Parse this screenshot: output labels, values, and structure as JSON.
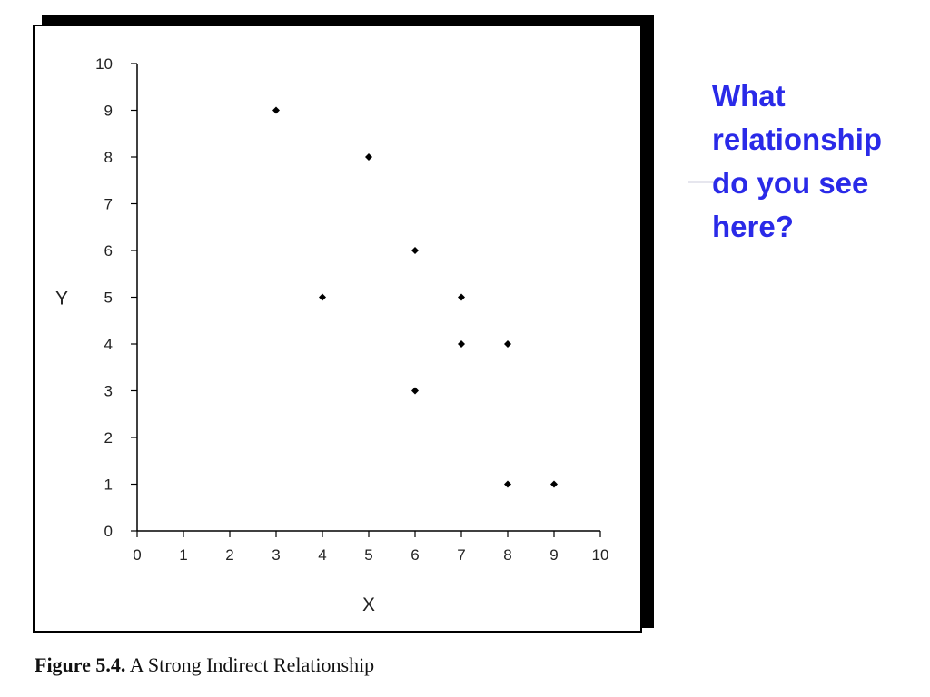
{
  "chart_data": {
    "type": "scatter",
    "title": "",
    "xlabel": "X",
    "ylabel": "Y",
    "xlim": [
      0,
      10
    ],
    "ylim": [
      0,
      10
    ],
    "xticks": [
      0,
      1,
      2,
      3,
      4,
      5,
      6,
      7,
      8,
      9,
      10
    ],
    "yticks": [
      0,
      1,
      2,
      3,
      4,
      5,
      6,
      7,
      8,
      9,
      10
    ],
    "grid": false,
    "series": [
      {
        "points": [
          {
            "x": 3,
            "y": 9
          },
          {
            "x": 5,
            "y": 8
          },
          {
            "x": 6,
            "y": 6
          },
          {
            "x": 4,
            "y": 5
          },
          {
            "x": 7,
            "y": 5
          },
          {
            "x": 7,
            "y": 4
          },
          {
            "x": 8,
            "y": 4
          },
          {
            "x": 6,
            "y": 3
          },
          {
            "x": 8,
            "y": 1
          },
          {
            "x": 9,
            "y": 1
          }
        ]
      }
    ]
  },
  "caption": {
    "figure_label": "Figure 5.4.",
    "text": "A Strong Indirect Relationship"
  },
  "question": "What relationship do you see here?",
  "colors": {
    "question_text": "#2a2ae8",
    "marker": "#000000",
    "frame_shadow": "#000000"
  }
}
